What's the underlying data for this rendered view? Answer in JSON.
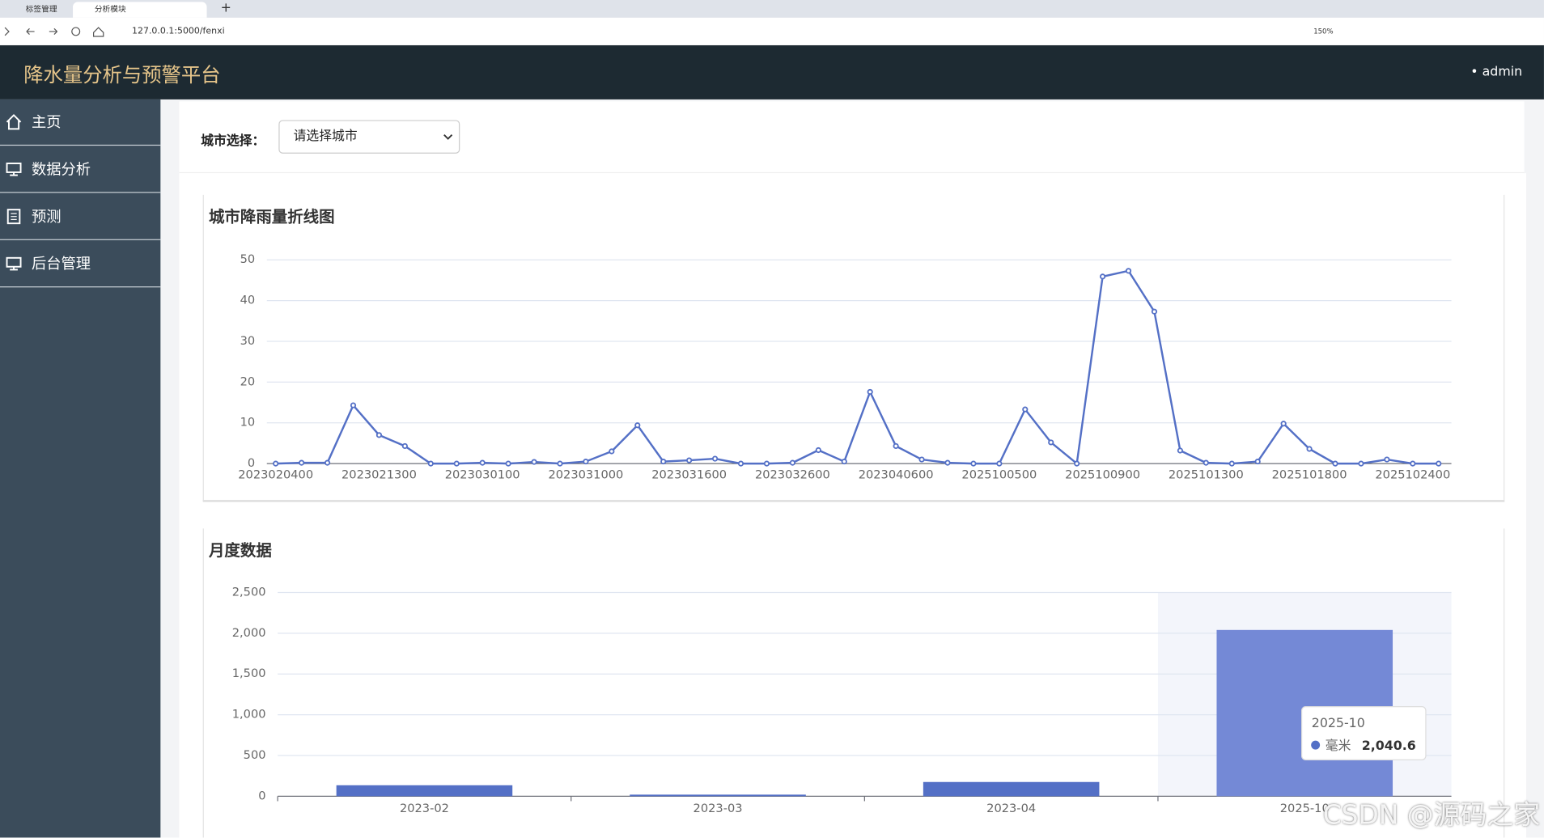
{
  "browser": {
    "tabs": [
      "标签管理",
      "分析模块"
    ],
    "url": "127.0.0.1:5000/fenxi",
    "zoom": "150%"
  },
  "header": {
    "title": "降水量分析与预警平台",
    "user": "admin"
  },
  "sidebar": {
    "items": [
      "主页",
      "数据分析",
      "预测",
      "后台管理"
    ]
  },
  "filter": {
    "label": "城市选择：",
    "placeholder": "请选择城市"
  },
  "chart_data": [
    {
      "type": "line",
      "title": "城市降雨量折线图",
      "categories": [
        "2023020400",
        null,
        null,
        null,
        "2023021300",
        null,
        null,
        null,
        "2023030100",
        null,
        null,
        null,
        "2023031000",
        null,
        null,
        null,
        "2023031600",
        null,
        null,
        null,
        "2023032600",
        null,
        null,
        null,
        "2023040600",
        null,
        null,
        null,
        "2025100500",
        null,
        null,
        null,
        "2025100900",
        null,
        null,
        null,
        "2025101300",
        null,
        null,
        null,
        "2025101800",
        null,
        null,
        null,
        "2025102400",
        null
      ],
      "values": [
        0,
        0.2,
        0.2,
        14.3,
        7,
        4.3,
        0,
        0,
        0.2,
        0,
        0.4,
        0,
        0.5,
        3,
        9.4,
        0.5,
        0.8,
        1.2,
        0,
        0,
        0.2,
        3.3,
        0.5,
        17.6,
        4.3,
        1,
        0.2,
        0,
        0,
        13.3,
        5.2,
        0,
        45.9,
        47.3,
        37.3,
        3.2,
        0.2,
        0,
        0.5,
        9.8,
        3.6,
        0,
        0,
        1,
        0,
        0
      ],
      "color": "#5470c6",
      "ylim": [
        0,
        50
      ],
      "yticks": [
        0,
        10,
        20,
        30,
        40,
        50
      ],
      "grid": true
    },
    {
      "type": "bar",
      "title": "月度数据",
      "categories": [
        "2023-02",
        "2023-03",
        "2023-04",
        "2025-10"
      ],
      "series": [
        {
          "name": "毫米",
          "color": "#5470c6",
          "values": [
            135,
            20,
            175,
            2040.6
          ],
          "value_labels": [
            null,
            null,
            null,
            "2,040.6"
          ]
        }
      ],
      "ylim": [
        0,
        2500
      ],
      "yticks": [
        0,
        500,
        {
          "value": 1000,
          "label": "1,000"
        },
        {
          "value": 1500,
          "label": "1,500"
        },
        {
          "value": 2000,
          "label": "2,000"
        },
        {
          "value": 2500,
          "label": "2,500"
        }
      ],
      "grid": true
    }
  ],
  "watermark": "CSDN @源码之家"
}
